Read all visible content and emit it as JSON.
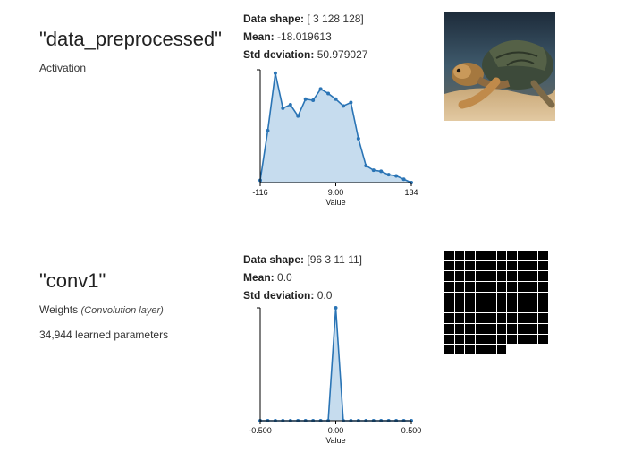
{
  "layers": [
    {
      "name": "\"data_preprocessed\"",
      "type": "Activation",
      "type_detail": "",
      "params": "",
      "stats": {
        "shape_label": "Data shape:",
        "shape_value": "[ 3 128 128]",
        "mean_label": "Mean:",
        "mean_value": "-18.019613",
        "std_label": "Std deviation:",
        "std_value": "50.979027"
      },
      "image_icon": "turtle-photo-icon"
    },
    {
      "name": "\"conv1\"",
      "type": "Weights",
      "type_detail": "(Convolution layer)",
      "params": "34,944 learned parameters",
      "stats": {
        "shape_label": "Data shape:",
        "shape_value": "[96 3 11 11]",
        "mean_label": "Mean:",
        "mean_value": "0.0",
        "std_label": "Std deviation:",
        "std_value": "0.0"
      },
      "image_icon": "weights-grid-icon",
      "grid": {
        "columns": 10,
        "filled_cells": 96
      }
    }
  ],
  "colors": {
    "line": "#2a74b5",
    "fill": "#c6dcee",
    "grid_cell": "#000000"
  },
  "chart_data": [
    {
      "type": "area",
      "xlabel": "Value",
      "tick_labels": [
        "-116",
        "9.00",
        "134"
      ],
      "xlim": [
        -116,
        134
      ],
      "ylim": [
        0,
        1
      ],
      "grid": false,
      "x": [
        -116,
        -103.5,
        -91,
        -78.5,
        -66,
        -53.5,
        -41,
        -28.5,
        -16,
        -3.5,
        9,
        21.5,
        34,
        46.5,
        59,
        71.5,
        84,
        96.5,
        109,
        121.5,
        134
      ],
      "y": [
        0.02,
        0.46,
        0.97,
        0.66,
        0.69,
        0.59,
        0.74,
        0.73,
        0.83,
        0.79,
        0.74,
        0.68,
        0.71,
        0.39,
        0.15,
        0.11,
        0.1,
        0.07,
        0.06,
        0.03,
        0.0
      ]
    },
    {
      "type": "area",
      "xlabel": "Value",
      "tick_labels": [
        "-0.500",
        "0.00",
        "0.500"
      ],
      "xlim": [
        -0.5,
        0.5
      ],
      "ylim": [
        0,
        1
      ],
      "grid": false,
      "x": [
        -0.5,
        -0.45,
        -0.4,
        -0.35,
        -0.3,
        -0.25,
        -0.2,
        -0.15,
        -0.1,
        -0.05,
        0.0,
        0.05,
        0.1,
        0.15,
        0.2,
        0.25,
        0.3,
        0.35,
        0.4,
        0.45,
        0.5
      ],
      "y": [
        0,
        0,
        0,
        0,
        0,
        0,
        0,
        0,
        0,
        0,
        1.0,
        0,
        0,
        0,
        0,
        0,
        0,
        0,
        0,
        0,
        0
      ]
    }
  ]
}
